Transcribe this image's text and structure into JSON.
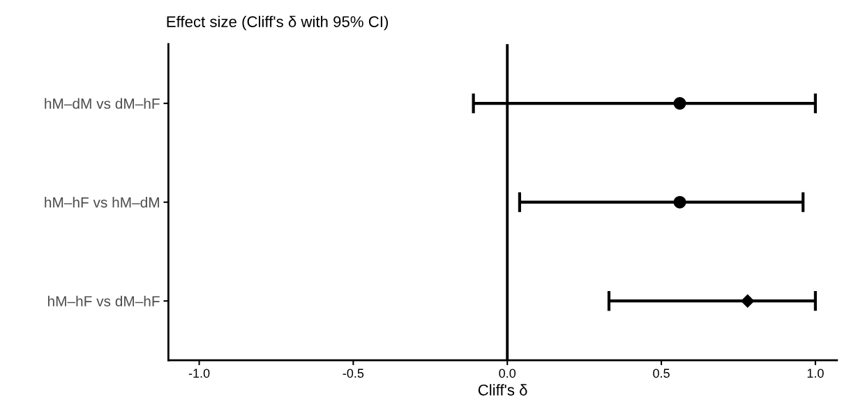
{
  "chart_data": {
    "type": "scatter",
    "orientation": "horizontal",
    "title": "Effect size (Cliff's δ with 95% CI)",
    "xlabel": "Cliff's δ",
    "categories": [
      "hM–dM vs dM–hF",
      "hM–hF vs hM–dM",
      "hM–hF vs dM–hF"
    ],
    "series": [
      {
        "color": "#000000",
        "marker": "circle",
        "values": [
          0.56,
          0.56,
          null
        ],
        "errors": [
          [
            -0.11,
            1.0
          ],
          [
            0.04,
            0.96
          ],
          null
        ]
      },
      {
        "color": "#000000",
        "marker": "diamond",
        "values": [
          null,
          null,
          0.78
        ],
        "errors": [
          null,
          null,
          [
            0.33,
            1.0
          ]
        ]
      }
    ],
    "xlim": [
      -1.1,
      1.07
    ],
    "xticks": [
      {
        "value": -1.0,
        "label": "-1.0"
      },
      {
        "value": -0.5,
        "label": "-0.5"
      },
      {
        "value": 0.0,
        "label": "0.0"
      },
      {
        "value": 0.5,
        "label": "0.5"
      },
      {
        "value": 1.0,
        "label": "1.0"
      }
    ],
    "ref_lines": [
      {
        "axis": "x",
        "value": 0,
        "color": "#000000",
        "line_style": "solid"
      }
    ],
    "grid": false,
    "legend": false
  }
}
